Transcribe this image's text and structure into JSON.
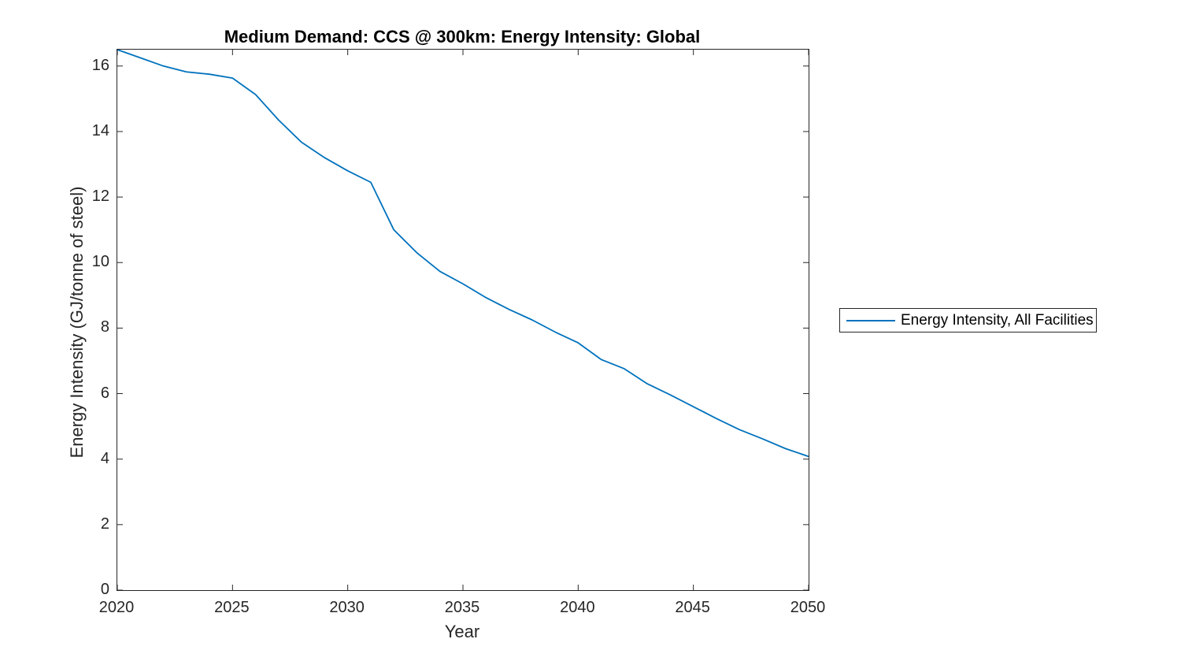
{
  "chart_data": {
    "type": "line",
    "title": "Medium Demand: CCS @ 300km: Energy Intensity: Global",
    "xlabel": "Year",
    "ylabel": "Energy Intensity (GJ/tonne of steel)",
    "xlim": [
      2020,
      2050
    ],
    "ylim": [
      0,
      16.5
    ],
    "xticks": [
      2020,
      2025,
      2030,
      2035,
      2040,
      2045,
      2050
    ],
    "yticks": [
      0,
      2,
      4,
      6,
      8,
      10,
      12,
      14,
      16
    ],
    "grid": false,
    "legend_position": "outside-right",
    "series": [
      {
        "name": "Energy Intensity, All Facilities",
        "color": "#0072BD",
        "x": [
          2020,
          2021,
          2022,
          2023,
          2024,
          2025,
          2026,
          2027,
          2028,
          2029,
          2030,
          2031,
          2032,
          2033,
          2034,
          2035,
          2036,
          2037,
          2038,
          2039,
          2040,
          2041,
          2042,
          2043,
          2044,
          2045,
          2046,
          2047,
          2048,
          2049,
          2050
        ],
        "values": [
          16.5,
          16.25,
          16.0,
          15.82,
          15.75,
          15.63,
          15.13,
          14.35,
          13.67,
          13.2,
          12.8,
          12.45,
          11.0,
          10.3,
          9.73,
          9.35,
          8.93,
          8.57,
          8.25,
          7.88,
          7.55,
          7.04,
          6.76,
          6.3,
          5.96,
          5.6,
          5.24,
          4.9,
          4.62,
          4.32,
          4.08
        ]
      }
    ]
  },
  "colors": {
    "line": "#0072BD",
    "axis": "#262626",
    "background": "#ffffff"
  }
}
